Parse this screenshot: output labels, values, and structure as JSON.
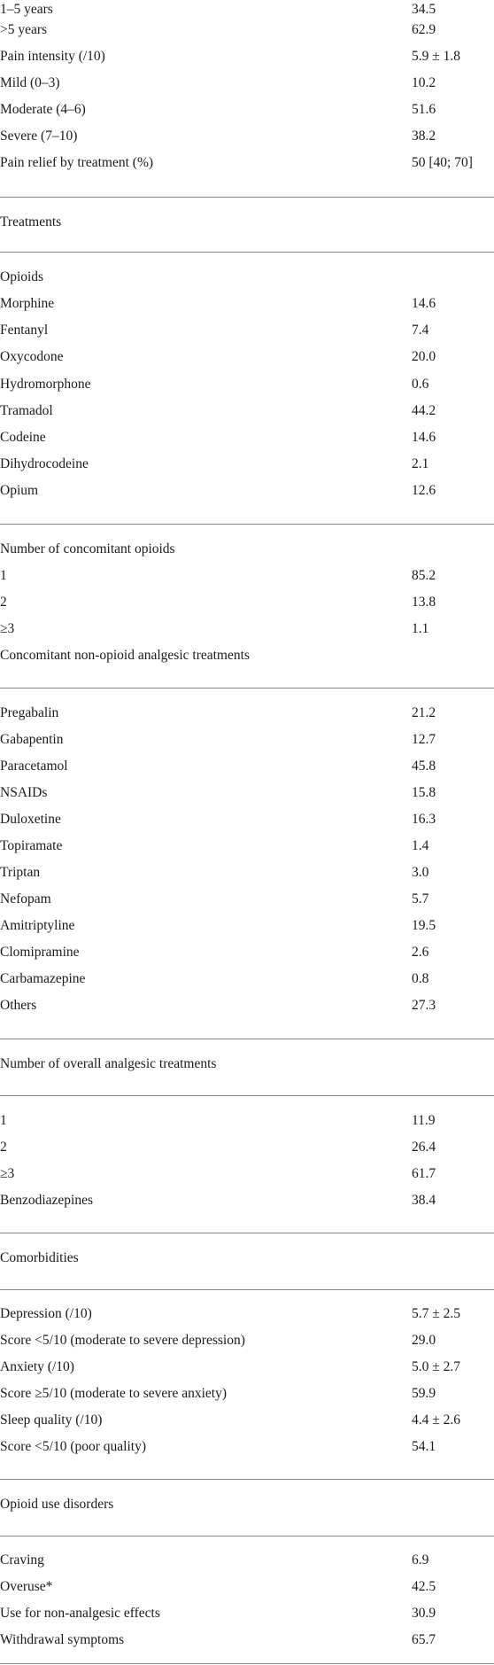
{
  "rows": {
    "dur_1_5": {
      "label": "1–5 years",
      "value": "34.5"
    },
    "dur_gt5": {
      "label": ">5 years",
      "value": "62.9"
    },
    "pain_intensity": {
      "label": "Pain intensity (/10)",
      "value": "5.9 ± 1.8"
    },
    "mild": {
      "label": "Mild (0–3)",
      "value": "10.2"
    },
    "moderate": {
      "label": "Moderate (4–6)",
      "value": "51.6"
    },
    "severe": {
      "label": "Severe (7–10)",
      "value": "38.2"
    },
    "pain_relief": {
      "label": "Pain relief by treatment (%)",
      "value": "50 [40; 70]"
    },
    "treatments": {
      "label": "Treatments"
    },
    "opioids": {
      "label": "Opioids"
    },
    "morphine": {
      "label": "Morphine",
      "value": "14.6"
    },
    "fentanyl": {
      "label": "Fentanyl",
      "value": "7.4"
    },
    "oxycodone": {
      "label": "Oxycodone",
      "value": "20.0"
    },
    "hydromorphone": {
      "label": "Hydromorphone",
      "value": "0.6"
    },
    "tramadol": {
      "label": "Tramadol",
      "value": "44.2"
    },
    "codeine": {
      "label": "Codeine",
      "value": "14.6"
    },
    "dihydrocodeine": {
      "label": "Dihydrocodeine",
      "value": "2.1"
    },
    "opium": {
      "label": "Opium",
      "value": "12.6"
    },
    "num_opioids": {
      "label": "Number of concomitant opioids"
    },
    "op_1": {
      "label": "1",
      "value": "85.2"
    },
    "op_2": {
      "label": "2",
      "value": "13.8"
    },
    "op_3": {
      "label": "≥3",
      "value": "1.1"
    },
    "non_opioid": {
      "label": "Concomitant non-opioid analgesic treatments"
    },
    "pregabalin": {
      "label": "Pregabalin",
      "value": "21.2"
    },
    "gabapentin": {
      "label": "Gabapentin",
      "value": "12.7"
    },
    "paracetamol": {
      "label": "Paracetamol",
      "value": "45.8"
    },
    "nsaids": {
      "label": "NSAIDs",
      "value": "15.8"
    },
    "duloxetine": {
      "label": "Duloxetine",
      "value": "16.3"
    },
    "topiramate": {
      "label": "Topiramate",
      "value": "1.4"
    },
    "triptan": {
      "label": "Triptan",
      "value": "3.0"
    },
    "nefopam": {
      "label": "Nefopam",
      "value": "5.7"
    },
    "amitriptyline": {
      "label": "Amitriptyline",
      "value": "19.5"
    },
    "clomipramine": {
      "label": "Clomipramine",
      "value": "2.6"
    },
    "carbamazepine": {
      "label": "Carbamazepine",
      "value": "0.8"
    },
    "others": {
      "label": "Others",
      "value": "27.3"
    },
    "num_overall": {
      "label": "Number of overall analgesic treatments"
    },
    "ov_1": {
      "label": "1",
      "value": "11.9"
    },
    "ov_2": {
      "label": "2",
      "value": "26.4"
    },
    "ov_3": {
      "label": "≥3",
      "value": "61.7"
    },
    "benzo": {
      "label": "Benzodiazepines",
      "value": "38.4"
    },
    "comorbidities": {
      "label": "Comorbidities"
    },
    "depression": {
      "label": "Depression (/10)",
      "value": "5.7 ± 2.5"
    },
    "dep_score": {
      "label": "Score <5/10 (moderate to severe depression)",
      "value": "29.0"
    },
    "anxiety": {
      "label": "Anxiety (/10)",
      "value": "5.0 ± 2.7"
    },
    "anx_score": {
      "label": "Score ≥5/10 (moderate to severe anxiety)",
      "value": "59.9"
    },
    "sleep": {
      "label": "Sleep quality (/10)",
      "value": "4.4 ± 2.6"
    },
    "sleep_score": {
      "label": "Score <5/10 (poor quality)",
      "value": "54.1"
    },
    "oud": {
      "label": "Opioid use disorders"
    },
    "craving": {
      "label": "Craving",
      "value": "6.9"
    },
    "overuse": {
      "label": "Overuse*",
      "value": "42.5"
    },
    "non_analgesic": {
      "label": "Use for non-analgesic effects",
      "value": "30.9"
    },
    "withdrawal": {
      "label": "Withdrawal symptoms",
      "value": "65.7"
    }
  }
}
